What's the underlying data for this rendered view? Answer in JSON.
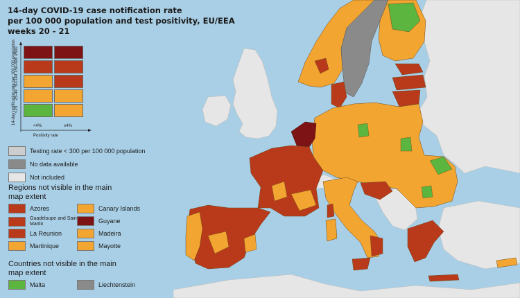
{
  "title": {
    "line1": "14-day COVID-19 case notification rate",
    "line2": "per 100 000 population and test positivity, EU/EEA",
    "line3": "weeks 20 - 21"
  },
  "colors": {
    "sea": "#a9cfe6",
    "dark_red": "#7d1314",
    "red": "#b83a1b",
    "orange": "#f2a531",
    "green": "#5cb53e",
    "grey_dark": "#8a8a8a",
    "grey_light": "#cdcdcd",
    "not_included": "#e6e6e6"
  },
  "matrix": {
    "y_axis_label": "14-day notification rate per 100 000 population",
    "x_axis_label": "Positivity rate",
    "row_labels": [
      "≥500",
      "150-499",
      "50-149",
      "25-49",
      "<25"
    ],
    "col_labels": [
      "<4%",
      "≥4%"
    ],
    "cells": [
      [
        "dark_red",
        "dark_red"
      ],
      [
        "red",
        "red"
      ],
      [
        "orange",
        "red"
      ],
      [
        "orange",
        "orange"
      ],
      [
        "green",
        "orange"
      ]
    ]
  },
  "legend": {
    "testing_rate": "Testing rate < 300 per 100 000 population",
    "no_data": "No data available",
    "not_included": "Not included"
  },
  "regions_title": "Regions not visible in the main map extent",
  "regions": [
    {
      "label": "Azores",
      "color": "red"
    },
    {
      "label": "Canary Islands",
      "color": "orange"
    },
    {
      "label": "Guadeloupe and Saint Martin",
      "color": "red"
    },
    {
      "label": "Guyane",
      "color": "dark_red"
    },
    {
      "label": "La Reunion",
      "color": "red"
    },
    {
      "label": "Madeira",
      "color": "orange"
    },
    {
      "label": "Martinique",
      "color": "orange"
    },
    {
      "label": "Mayotte",
      "color": "orange"
    }
  ],
  "countries_title": "Countries not visible in the main map extent",
  "countries": [
    {
      "label": "Malta",
      "color": "green"
    },
    {
      "label": "Liechtenstein",
      "color": "grey_dark"
    }
  ]
}
